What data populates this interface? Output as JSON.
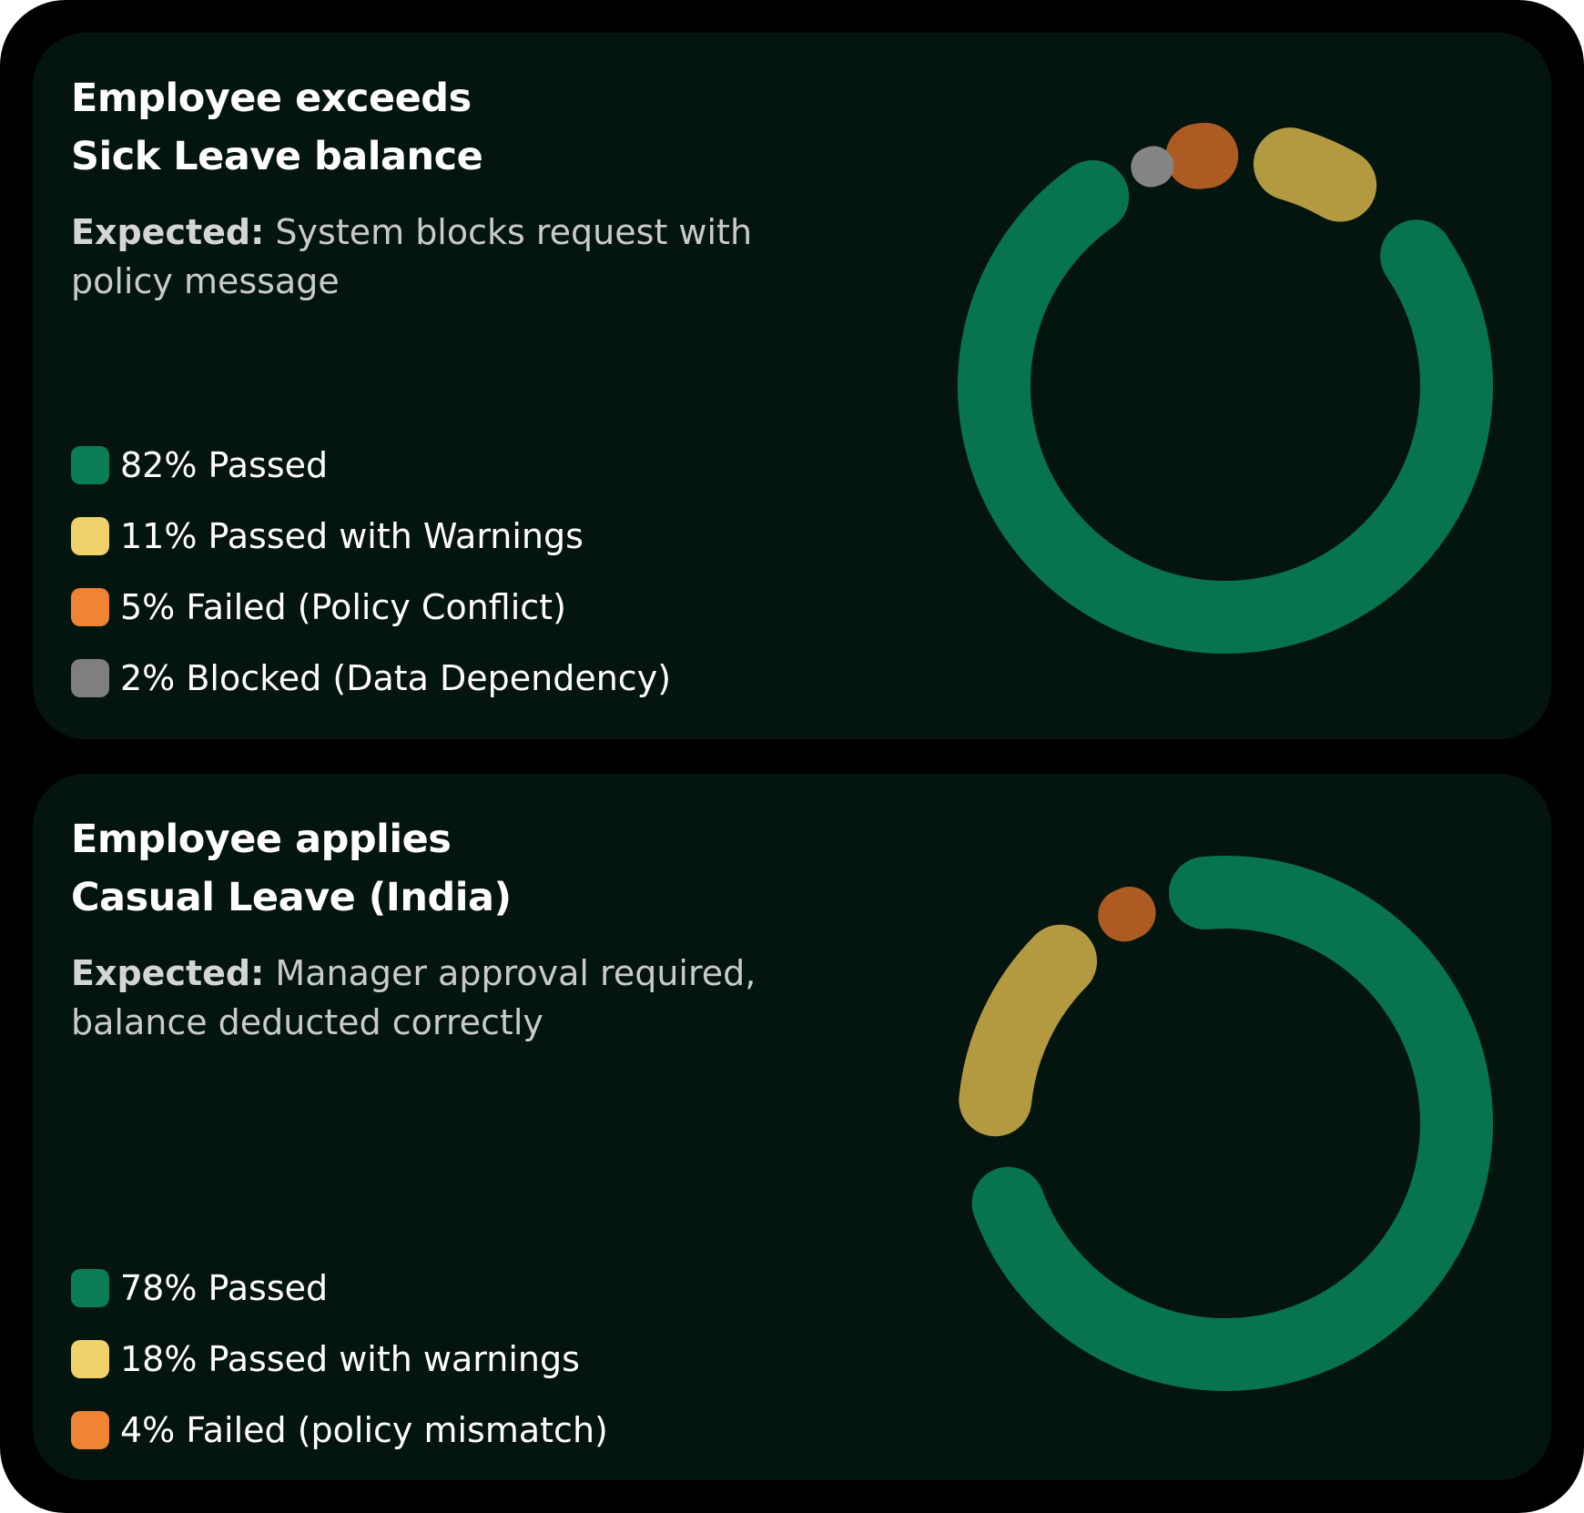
{
  "colors": {
    "passed": "#07744f",
    "passed_warnings": "#b39a40",
    "failed": "#ad5b22",
    "blocked": "#858585",
    "legend_passed": "#0a7d55",
    "legend_warnings": "#efd26a",
    "legend_failed": "#f08432",
    "legend_blocked": "#7f7f7f"
  },
  "cards": [
    {
      "title_line1": "Employee exceeds",
      "title_line2": "Sick Leave balance",
      "expected_label": "Expected:",
      "expected_text": "System blocks request with policy message",
      "legend": [
        {
          "label": "82% Passed"
        },
        {
          "label": "11% Passed with Warnings"
        },
        {
          "label": "5% Failed (Policy Conflict)"
        },
        {
          "label": "2% Blocked (Data Dependency)"
        }
      ]
    },
    {
      "title_line1": "Employee applies",
      "title_line2": "Casual Leave (India)",
      "expected_label": "Expected:",
      "expected_text": "Manager approval required, balance deducted correctly",
      "legend": [
        {
          "label": "78% Passed"
        },
        {
          "label": "18% Passed with warnings"
        },
        {
          "label": "4% Failed (policy mismatch)"
        }
      ]
    }
  ],
  "chart_data": [
    {
      "type": "pie",
      "title": "Employee exceeds Sick Leave balance",
      "categories": [
        "Passed",
        "Passed with Warnings",
        "Failed (Policy Conflict)",
        "Blocked (Data Dependency)"
      ],
      "values": [
        82,
        11,
        5,
        2
      ],
      "unit": "%",
      "legend": "left"
    },
    {
      "type": "pie",
      "title": "Employee applies Casual Leave (India)",
      "categories": [
        "Passed",
        "Passed with warnings",
        "Failed (policy mismatch)"
      ],
      "values": [
        78,
        18,
        4
      ],
      "unit": "%",
      "legend": "left"
    }
  ]
}
